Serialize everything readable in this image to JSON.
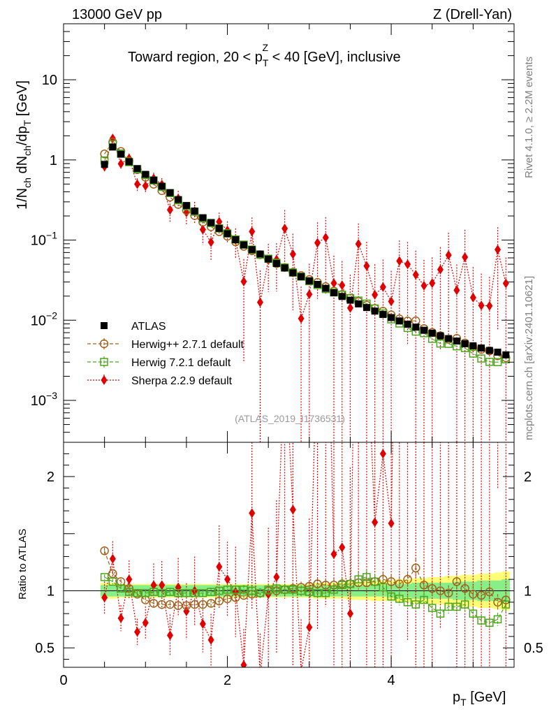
{
  "header": {
    "left": "13000 GeV pp",
    "right": "Z (Drell-Yan)"
  },
  "side_texts": {
    "rivet": "Rivet 4.1.0, ≥ 2.2M events",
    "mcplots": "mcplots.cern.ch [arXiv:2401.10621]"
  },
  "chart_data": {
    "type": "scatter",
    "title_prefix": "Toward region, 20 < p",
    "title_sup": "Z",
    "title_sub": "T",
    "title_suffix": " < 40 [GeV], inclusive",
    "watermark": "(ATLAS_2019_I1736531)",
    "ylabel": "1/N_ch dN_ch/dp_T [GeV]",
    "ratio_ylabel": "Ratio to ATLAS",
    "xlabel": "p_T [GeV]",
    "xlim": [
      0,
      5.5
    ],
    "ylim": [
      0.0003,
      50
    ],
    "ratio_ylim": [
      0.33,
      2.3
    ],
    "x_ticks": [
      "0",
      "2",
      "4"
    ],
    "y_ticks": [
      {
        "value": 10,
        "label": "10"
      },
      {
        "value": 1,
        "label": "1"
      },
      {
        "value": 0.1,
        "base": "10",
        "exp": "−1"
      },
      {
        "value": 0.01,
        "base": "10",
        "exp": "−2"
      },
      {
        "value": 0.001,
        "base": "10",
        "exp": "−3"
      }
    ],
    "ratio_ticks": [
      {
        "value": 2,
        "label": "2"
      },
      {
        "value": 1,
        "label": "1"
      },
      {
        "value": 0.5,
        "label": "0.5"
      }
    ],
    "x": [
      0.5,
      0.6,
      0.7,
      0.8,
      0.9,
      1.0,
      1.1,
      1.2,
      1.3,
      1.4,
      1.5,
      1.6,
      1.7,
      1.8,
      1.9,
      2.0,
      2.1,
      2.2,
      2.3,
      2.4,
      2.5,
      2.6,
      2.7,
      2.8,
      2.9,
      3.0,
      3.1,
      3.2,
      3.3,
      3.4,
      3.5,
      3.6,
      3.7,
      3.8,
      3.9,
      4.0,
      4.1,
      4.2,
      4.3,
      4.4,
      4.5,
      4.6,
      4.7,
      4.8,
      4.9,
      5.0,
      5.1,
      5.2,
      5.3,
      5.4
    ],
    "legend": [
      {
        "name": "ATLAS",
        "marker": "filled-square",
        "color": "#000000"
      },
      {
        "name": "Herwig++ 2.7.1 default",
        "marker": "open-circle",
        "color": "#a0621c",
        "dash": "dashed"
      },
      {
        "name": "Herwig 7.2.1 default",
        "marker": "open-square",
        "color": "#4ea51d",
        "dash": "dashed"
      },
      {
        "name": "Sherpa 2.2.9 default",
        "marker": "filled-diamond",
        "color": "#e00000",
        "dash": "dotted"
      }
    ],
    "series": [
      {
        "name": "ATLAS",
        "values": [
          0.88,
          1.45,
          1.18,
          0.95,
          0.78,
          0.66,
          0.56,
          0.47,
          0.39,
          0.32,
          0.27,
          0.23,
          0.19,
          0.165,
          0.14,
          0.12,
          0.101,
          0.087,
          0.076,
          0.067,
          0.058,
          0.051,
          0.045,
          0.039,
          0.035,
          0.031,
          0.028,
          0.025,
          0.022,
          0.0198,
          0.0178,
          0.016,
          0.0144,
          0.013,
          0.0118,
          0.0108,
          0.0098,
          0.0089,
          0.0082,
          0.0075,
          0.0069,
          0.0064,
          0.0059,
          0.0055,
          0.0051,
          0.0048,
          0.0045,
          0.0042,
          0.004,
          0.0037
        ]
      },
      {
        "name": "Herwig++ 2.7.1 default",
        "ratio": [
          1.35,
          1.15,
          1.08,
          1.02,
          0.97,
          0.92,
          0.89,
          0.88,
          0.88,
          0.87,
          0.87,
          0.88,
          0.88,
          0.89,
          0.91,
          0.93,
          0.94,
          0.96,
          0.97,
          0.98,
          1.0,
          1.0,
          1.01,
          1.02,
          1.03,
          1.04,
          1.06,
          1.05,
          1.05,
          1.06,
          1.06,
          1.07,
          1.07,
          1.08,
          1.1,
          1.08,
          1.06,
          1.1,
          1.2,
          1.05,
          1.02,
          1.0,
          0.98,
          1.08,
          1.02,
          0.97,
          0.96,
          0.99,
          0.9,
          0.92
        ]
      },
      {
        "name": "Herwig 7.2.1 default",
        "ratio": [
          1.12,
          1.08,
          1.02,
          0.99,
          0.98,
          0.98,
          0.99,
          0.98,
          0.99,
          0.98,
          0.98,
          0.98,
          0.98,
          0.99,
          1.0,
          1.01,
          1.01,
          1.01,
          1.0,
          0.98,
          1.01,
          1.02,
          1.01,
          1.01,
          1.0,
          0.99,
          0.98,
          0.98,
          1.01,
          1.05,
          1.06,
          1.1,
          1.12,
          1.08,
          1.03,
          0.95,
          0.93,
          0.9,
          0.88,
          0.92,
          0.85,
          0.8,
          0.86,
          0.86,
          0.88,
          0.8,
          0.74,
          0.72,
          0.75,
          0.88
        ]
      },
      {
        "name": "Sherpa 2.2.9 default",
        "ratio": [
          0.94,
          1.28,
          0.76,
          1.1,
          0.64,
          0.72,
          1.05,
          1.05,
          0.61,
          1.03,
          0.82,
          1.0,
          0.71,
          0.57,
          1.21,
          1.1,
          0.99,
          0.35,
          1.68,
          0.25,
          0.97,
          1.12,
          3.1,
          1.71,
          0.3,
          0.68,
          3.3,
          4.3,
          1.32,
          1.38,
          0.8,
          5.6,
          3.3,
          1.6,
          2.2,
          1.59,
          5.6,
          5.6,
          4.5,
          3.6,
          4.2,
          6.7,
          11.0,
          4.3,
          12.0,
          4.0,
          3.4,
          3.6,
          19.0,
          7.8
        ],
        "rel_err": [
          0.15,
          0.12,
          0.15,
          0.15,
          0.18,
          0.2,
          0.18,
          0.2,
          0.3,
          0.25,
          0.3,
          0.3,
          0.35,
          0.4,
          0.3,
          0.3,
          0.4,
          0.9,
          0.5,
          1.5,
          0.6,
          0.6,
          0.7,
          0.8,
          1.5,
          1.4,
          0.8,
          0.8,
          1.2,
          1.0,
          1.6,
          0.8,
          1.0,
          1.4,
          1.2,
          1.4,
          0.8,
          0.9,
          1.0,
          1.1,
          1.1,
          0.9,
          0.9,
          1.1,
          1.2,
          1.4,
          1.5,
          1.3,
          0.9,
          1.1
        ]
      }
    ],
    "band_inner": [
      0.05,
      0.05,
      0.05,
      0.05,
      0.05,
      0.05,
      0.05,
      0.05,
      0.05,
      0.05,
      0.05,
      0.05,
      0.05,
      0.05,
      0.05,
      0.05,
      0.05,
      0.05,
      0.05,
      0.05,
      0.05,
      0.05,
      0.05,
      0.05,
      0.05,
      0.05,
      0.05,
      0.05,
      0.05,
      0.05,
      0.05,
      0.05,
      0.05,
      0.05,
      0.05,
      0.06,
      0.06,
      0.06,
      0.07,
      0.07,
      0.07,
      0.07,
      0.07,
      0.08,
      0.08,
      0.08,
      0.09,
      0.09,
      0.09,
      0.1
    ],
    "band_outer": [
      0.07,
      0.07,
      0.06,
      0.06,
      0.06,
      0.06,
      0.06,
      0.06,
      0.06,
      0.06,
      0.06,
      0.06,
      0.06,
      0.06,
      0.06,
      0.06,
      0.06,
      0.06,
      0.06,
      0.06,
      0.06,
      0.06,
      0.06,
      0.06,
      0.06,
      0.06,
      0.07,
      0.07,
      0.07,
      0.07,
      0.08,
      0.08,
      0.08,
      0.09,
      0.09,
      0.09,
      0.1,
      0.1,
      0.11,
      0.11,
      0.12,
      0.12,
      0.13,
      0.13,
      0.14,
      0.14,
      0.15,
      0.15,
      0.16,
      0.17
    ]
  }
}
